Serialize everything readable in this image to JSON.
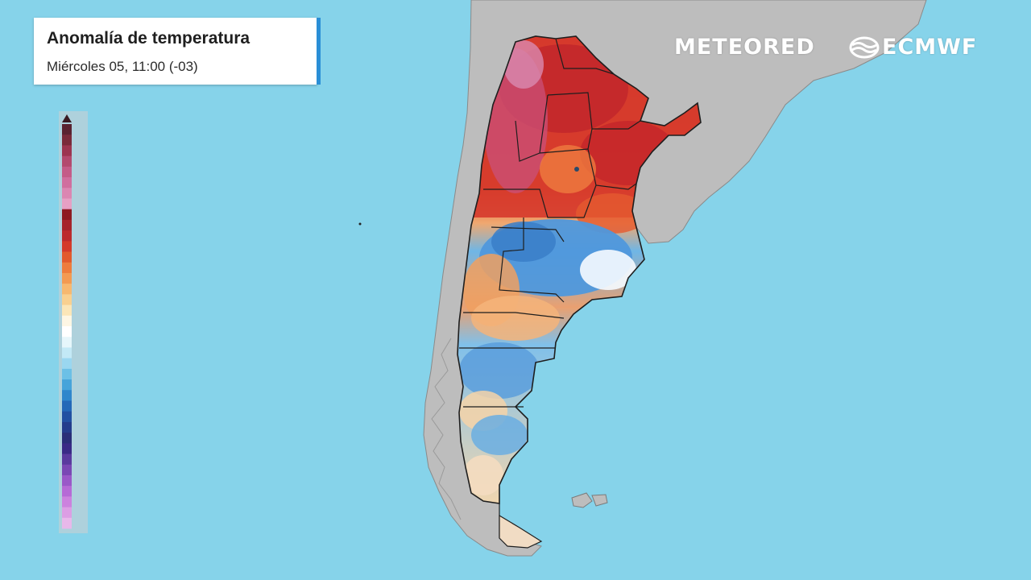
{
  "header": {
    "title": "Anomalía de temperatura",
    "subtitle": "Miércoles 05, 11:00 (-03)"
  },
  "brands": {
    "meteored": "METEORED",
    "ecmwf": "ECMWF",
    "ecmwf_icon": "ecmwf-logo-icon"
  },
  "legend": {
    "type": "color-scale",
    "colors_top_to_bottom": [
      "#5a2230",
      "#7a2a3a",
      "#9c3550",
      "#b34a6e",
      "#c45c88",
      "#d06e9e",
      "#db86b2",
      "#e6a0c4",
      "#8e1a22",
      "#a6222a",
      "#bc2a2c",
      "#d43a2a",
      "#e25a2c",
      "#ee7c3c",
      "#f39a52",
      "#f7b870",
      "#f9d090",
      "#fbe6b8",
      "#fdf6e4",
      "#ffffff",
      "#e6f6fb",
      "#c3e9f6",
      "#9ad7f0",
      "#6cc0e6",
      "#46a4da",
      "#2f86cc",
      "#2468b8",
      "#2250a2",
      "#243c8c",
      "#2a2e78",
      "#3a2a86",
      "#5a3a9e",
      "#7a48b4",
      "#9a58c8",
      "#b66ad6",
      "#cc82de",
      "#dc9ee4",
      "#e8b8ea"
    ],
    "arrow_color": "#3a1a22"
  },
  "map": {
    "ocean_color": "#86d3ea",
    "land_color": "#bdbdbd",
    "border_color": "#1e1e1e",
    "islands": [
      "islas-malvinas"
    ]
  }
}
